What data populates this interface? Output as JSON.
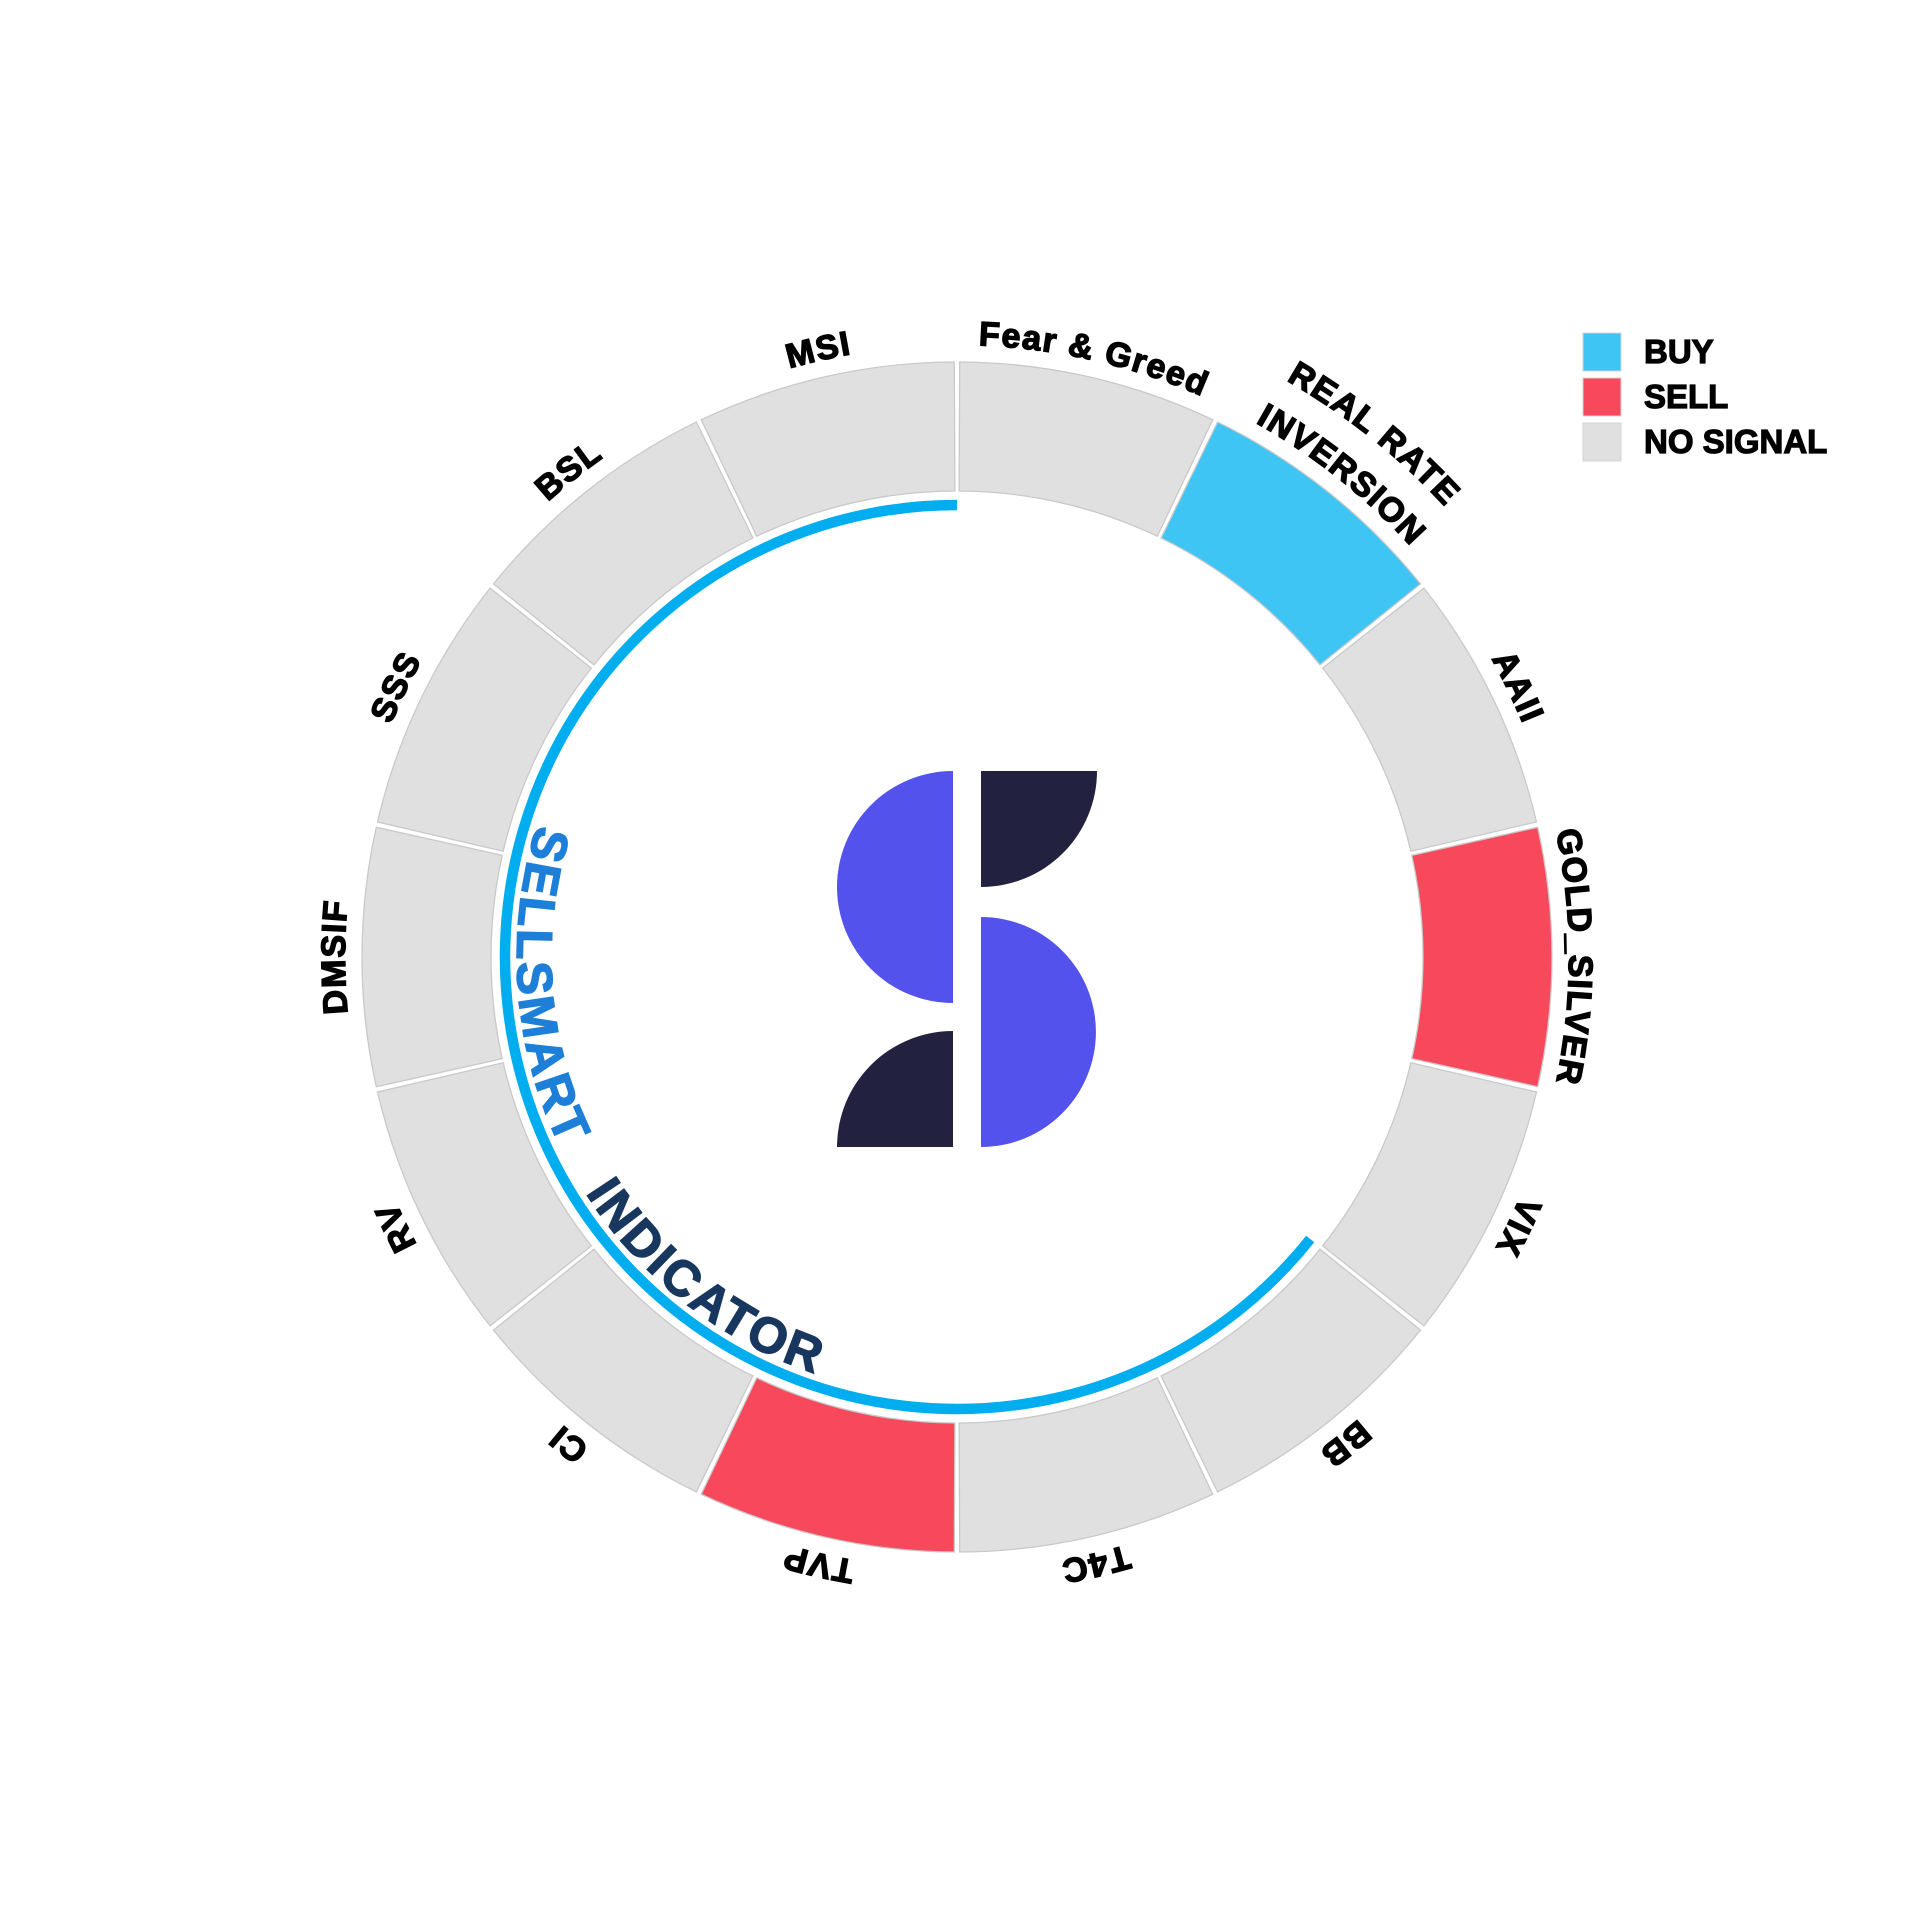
{
  "chart_data": {
    "type": "pie",
    "variant": "equal-segment-signal-ring",
    "title": "SELLSMART INDICATOR",
    "clockwise_from_top": true,
    "segment_angle_deg": 25.714,
    "segments": [
      {
        "label": "Fear & Greed",
        "lines": [
          "Fear & Greed"
        ],
        "signal": "NO SIGNAL"
      },
      {
        "label": "REAL RATE INVERSION",
        "lines": [
          "REAL RATE",
          "INVERSION"
        ],
        "signal": "BUY"
      },
      {
        "label": "AAII",
        "lines": [
          "AAII"
        ],
        "signal": "NO SIGNAL"
      },
      {
        "label": "GOLD_SILVER",
        "lines": [
          "GOLD_SILVER"
        ],
        "signal": "SELL"
      },
      {
        "label": "VIX",
        "lines": [
          "VIX"
        ],
        "signal": "NO SIGNAL"
      },
      {
        "label": "BB",
        "lines": [
          "BB"
        ],
        "signal": "NO SIGNAL"
      },
      {
        "label": "T4C",
        "lines": [
          "T4C"
        ],
        "signal": "NO SIGNAL"
      },
      {
        "label": "TVP",
        "lines": [
          "TVP"
        ],
        "signal": "SELL"
      },
      {
        "label": "CI",
        "lines": [
          "CI"
        ],
        "signal": "NO SIGNAL"
      },
      {
        "label": "RV",
        "lines": [
          "RV"
        ],
        "signal": "NO SIGNAL"
      },
      {
        "label": "DMSIF",
        "lines": [
          "DMSIF"
        ],
        "signal": "NO SIGNAL"
      },
      {
        "label": "SSS",
        "lines": [
          "SSS"
        ],
        "signal": "NO SIGNAL"
      },
      {
        "label": "BSL",
        "lines": [
          "BSL"
        ],
        "signal": "NO SIGNAL"
      },
      {
        "label": "MSI",
        "lines": [
          "MSI"
        ],
        "signal": "NO SIGNAL"
      }
    ],
    "signal_colors": {
      "BUY": "#3EC5F3",
      "SELL": "#F8495C",
      "NO SIGNAL": "#E0E0E0"
    },
    "legend": {
      "position": "upper-right",
      "entries": [
        {
          "label": "BUY",
          "color": "#3EC5F3"
        },
        {
          "label": "SELL",
          "color": "#F8495C"
        },
        {
          "label": "NO SIGNAL",
          "color": "#E0E0E0"
        }
      ]
    },
    "progress_arc": {
      "color": "#00ADEF",
      "start_angle_deg": 128.6,
      "end_angle_deg": 360
    },
    "center_text": {
      "word1": "SELLSMART",
      "word1_color": "#1E7FD8",
      "word2": "INDICATOR",
      "word2_color": "#17375F"
    },
    "logo_colors": {
      "purple": "#5452EC",
      "navy": "#222240"
    }
  }
}
